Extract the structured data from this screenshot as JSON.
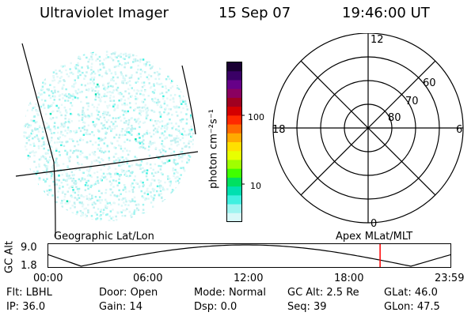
{
  "header": {
    "instrument": "Ultraviolet Imager",
    "date": "15 Sep 07",
    "time": "19:46:00 UT"
  },
  "colorbar": {
    "unit_label": "photon cm⁻²s⁻¹",
    "ticks": [
      "100",
      "10"
    ],
    "colors": [
      "#1a0033",
      "#3a0066",
      "#660088",
      "#8a0060",
      "#a00020",
      "#d40000",
      "#ff2a00",
      "#ff6a00",
      "#ffaa00",
      "#ffe000",
      "#e8ff00",
      "#a0ff00",
      "#40ff00",
      "#00e060",
      "#00e0b0",
      "#40f0e0",
      "#9ff4f0",
      "#d8f8f8"
    ]
  },
  "polar": {
    "mlt_labels": {
      "top": "12",
      "right": "6",
      "left": "18",
      "bottom": "0"
    },
    "lat_labels": [
      "60",
      "70",
      "80"
    ]
  },
  "timeline": {
    "left_title": "Geographic Lat/Lon",
    "right_title": "Apex  MLat/MLT",
    "y_axis_label": "GC Alt",
    "y_ticks": [
      "9.0",
      "1.8"
    ],
    "x_ticks": [
      "00:00",
      "06:00",
      "12:00",
      "18:00",
      "23:59"
    ],
    "marker_hour": 19.77,
    "marker_color": "#ff0000"
  },
  "footer": {
    "row1": [
      {
        "label": "Flt:",
        "value": "LBHL"
      },
      {
        "label": "Door:",
        "value": "Open"
      },
      {
        "label": "Mode:",
        "value": "Normal"
      },
      {
        "label": "GC Alt:",
        "value": "2.5 Re"
      },
      {
        "label": "GLat:",
        "value": "46.0"
      }
    ],
    "row2": [
      {
        "label": "IP:",
        "value": "36.0"
      },
      {
        "label": "Gain:",
        "value": "14"
      },
      {
        "label": "Dsp:",
        "value": "0.0"
      },
      {
        "label": "Seq:",
        "value": "39"
      },
      {
        "label": "GLon:",
        "value": "47.5"
      }
    ]
  }
}
